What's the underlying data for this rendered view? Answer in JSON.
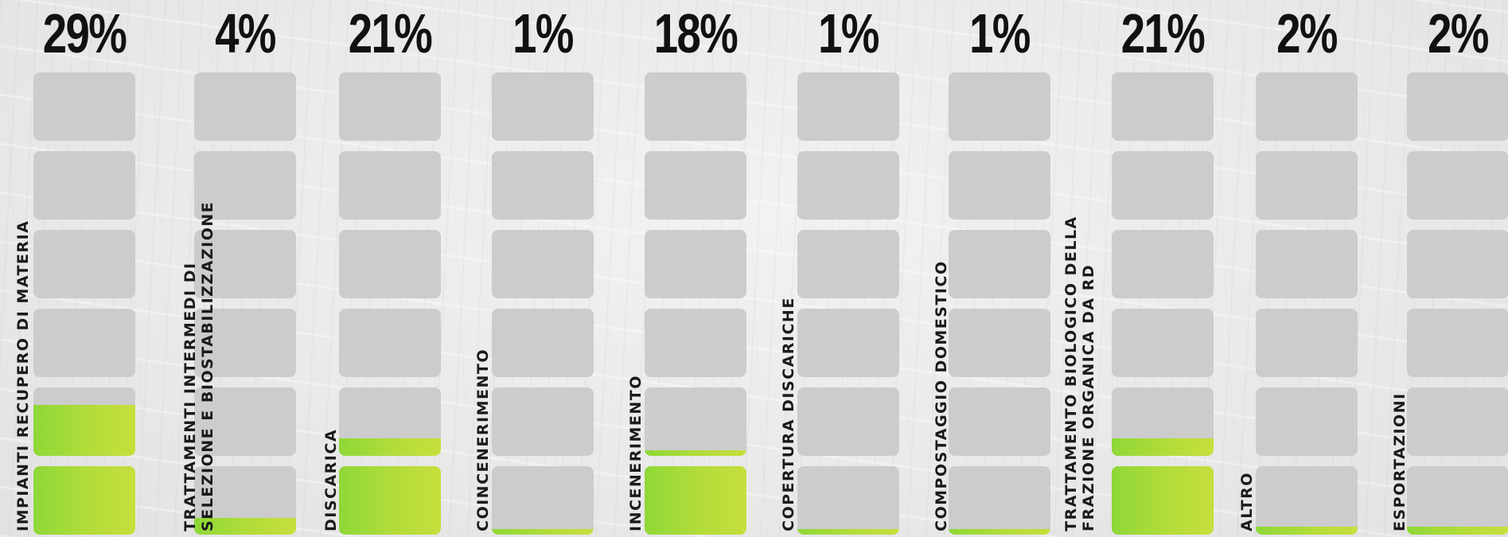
{
  "chart_data": {
    "type": "bar",
    "categories": [
      [
        "IMPIANTI RECUPERO DI MATERIA"
      ],
      [
        "TRATTAMENTI INTERMEDI DI",
        "SELEZIONE E BIOSTABILIZZAZIONE"
      ],
      [
        "DISCARICA"
      ],
      [
        "COINCENERIMENTO"
      ],
      [
        "INCENERIMENTO"
      ],
      [
        "COPERTURA DISCARICHE"
      ],
      [
        "COMPOSTAGGIO DOMESTICO"
      ],
      [
        "TRATTAMENTO BIOLOGICO DELLA",
        "FRAZIONE ORGANICA DA RD"
      ],
      [
        "ALTRO"
      ],
      [
        "ESPORTAZIONI"
      ]
    ],
    "values": [
      29,
      4,
      21,
      1,
      18,
      1,
      1,
      21,
      2,
      2
    ],
    "value_labels": [
      "29%",
      "4%",
      "21%",
      "1%",
      "18%",
      "1%",
      "1%",
      "21%",
      "2%",
      "2%"
    ],
    "cells_per_bar": 6,
    "percent_per_cell": 16.67,
    "colors": {
      "fill_start": "#8ed838",
      "fill_end": "#c6df3c",
      "empty": "#cccccc",
      "text": "#111111"
    }
  }
}
